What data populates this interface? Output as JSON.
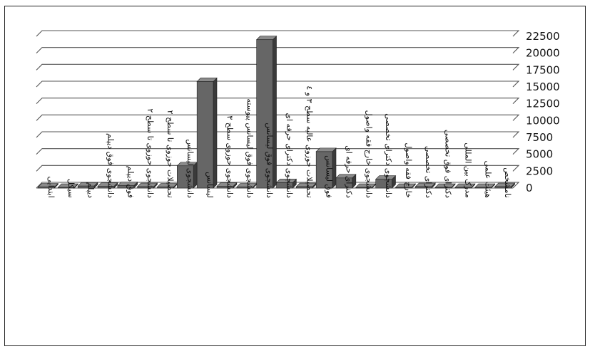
{
  "chart_data": {
    "type": "bar",
    "title": "",
    "xlabel": "",
    "ylabel": "",
    "ylim": [
      0,
      22500
    ],
    "yticks": [
      0,
      2500,
      5000,
      7500,
      10000,
      12500,
      15000,
      17500,
      20000,
      22500
    ],
    "grid": true,
    "legend": "none",
    "categories": [
      "ابتدایی",
      "سیکل",
      "دیپلم",
      "دانشجوی فوق دیپلم",
      "فوق دیپلم",
      "دانشجوی حوزوی تا سطح ۲",
      "تحصیلات حوزوی تا سطح ۲",
      "دانشجوی لیسانس",
      "لیسانس",
      "دانشجوی حوزوی سطح ۳",
      "دانشجوی فوق لیسانس پیوسته",
      "دانشجوی فوق لیسانس",
      "دانشجوی دکترای حرفه ای",
      "تحصیلات حوزوی عالیه سطح ۳ و ٤",
      "فوق لیسانس",
      "دکترای حرفه ای",
      "دانشجوی خارج فقه واصول",
      "دانشجوی دکترای تخصصی",
      "خارج فقه واصول",
      "دکترای تخصصی",
      "دکترای فوق تخصصی",
      "مدرک بین المللی",
      "هیئت علمی",
      "نامشخص"
    ],
    "values": [
      150,
      100,
      300,
      250,
      350,
      200,
      150,
      3300,
      15800,
      250,
      150,
      22000,
      800,
      200,
      5400,
      1500,
      100,
      1300,
      100,
      200,
      100,
      100,
      100,
      200
    ],
    "colors": {
      "bar": "#666666",
      "bar_top": "#8a8a8a",
      "bar_side": "#3a3a3a",
      "grid": "#555555",
      "background": "#ffffff"
    }
  }
}
